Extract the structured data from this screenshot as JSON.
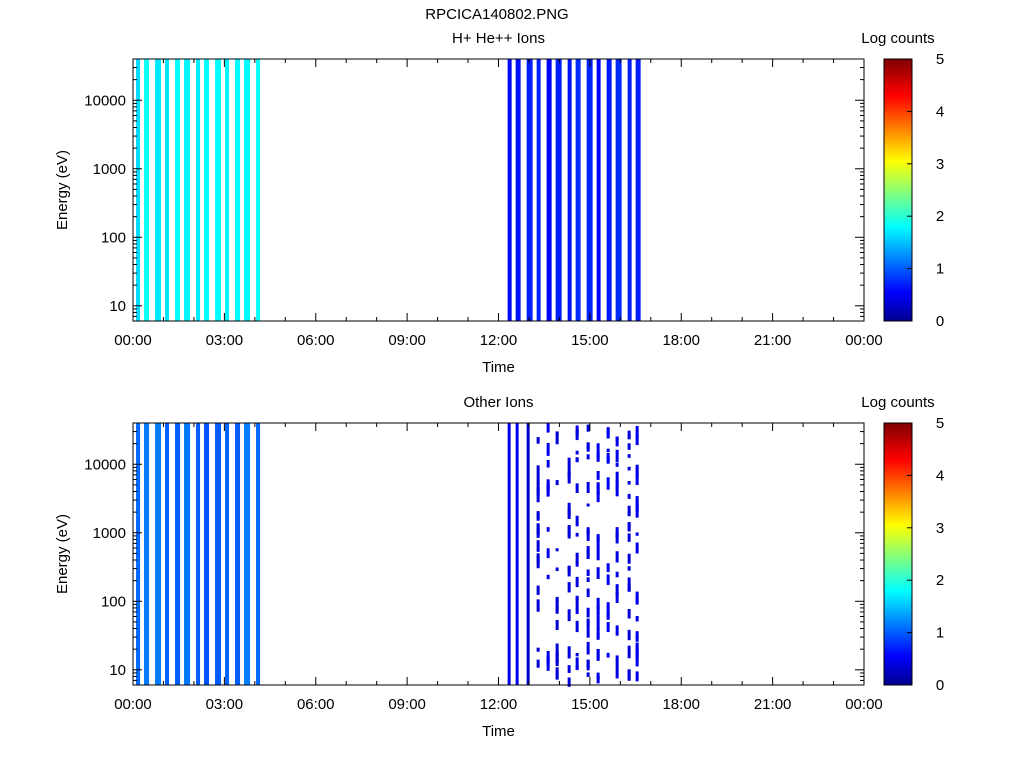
{
  "page_title": "RPCICA140802.PNG",
  "chart_data": [
    {
      "type": "heatmap",
      "title": "H+ He++ Ions",
      "xlabel": "Time",
      "ylabel": "Energy (eV)",
      "x_ticks": [
        "00:00",
        "03:00",
        "06:00",
        "09:00",
        "12:00",
        "15:00",
        "18:00",
        "21:00",
        "00:00"
      ],
      "xlim_hours": [
        0,
        24
      ],
      "y_scale": "log",
      "y_ticks": [
        10,
        100,
        1000,
        10000
      ],
      "y_tick_labels": [
        "10",
        "100",
        "1000",
        "10000"
      ],
      "ylim": [
        6,
        40000
      ],
      "colorbar": {
        "label": "Log counts",
        "range": [
          0,
          5
        ],
        "ticks": [
          "0",
          "1",
          "2",
          "3",
          "4",
          "5"
        ]
      },
      "segments": [
        {
          "start_hours": 0.1,
          "end_hours": 4.25,
          "level": 1.75,
          "pattern": "cyan-green stripes"
        },
        {
          "start_hours": 12.3,
          "end_hours": 16.75,
          "level": 0.65,
          "pattern": "blue stripes"
        }
      ]
    },
    {
      "type": "heatmap",
      "title": "Other Ions",
      "xlabel": "Time",
      "ylabel": "Energy (eV)",
      "x_ticks": [
        "00:00",
        "03:00",
        "06:00",
        "09:00",
        "12:00",
        "15:00",
        "18:00",
        "21:00",
        "00:00"
      ],
      "xlim_hours": [
        0,
        24
      ],
      "y_scale": "log",
      "y_ticks": [
        10,
        100,
        1000,
        10000
      ],
      "y_tick_labels": [
        "10",
        "100",
        "1000",
        "10000"
      ],
      "ylim": [
        6,
        40000
      ],
      "colorbar": {
        "label": "Log counts",
        "range": [
          0,
          5
        ],
        "ticks": [
          "0",
          "1",
          "2",
          "3",
          "4",
          "5"
        ]
      },
      "segments": [
        {
          "start_hours": 0.1,
          "end_hours": 4.25,
          "level": 1.05,
          "pattern": "blue stripes"
        },
        {
          "start_hours": 12.3,
          "end_hours": 16.75,
          "level": 0.3,
          "pattern": "sparse dark blue"
        }
      ]
    }
  ]
}
